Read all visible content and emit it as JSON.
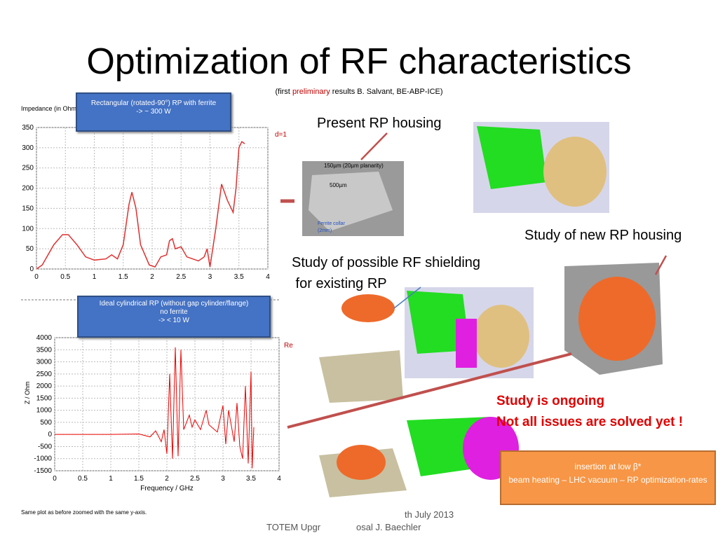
{
  "title": "Optimization of RF characteristics",
  "subtitle": {
    "prefix": "(first ",
    "highlight": "preliminary",
    "suffix": " results B. Salvant,  BE-ABP-ICE)"
  },
  "plot1": {
    "callout": [
      "Rectangular (rotated-90°)  RP with ferrite",
      "-> ~ 300 W"
    ],
    "ylabel": "Impedance (in Ohm",
    "legend": "d=1",
    "xlim": [
      0,
      4
    ],
    "ylim": [
      0,
      350
    ],
    "xticks": [
      0,
      0.5,
      1,
      1.5,
      2,
      2.5,
      3,
      3.5,
      4
    ],
    "yticks": [
      0,
      50,
      100,
      150,
      200,
      250,
      300,
      350
    ],
    "x": [
      0,
      0.1,
      0.3,
      0.45,
      0.55,
      0.7,
      0.85,
      1.0,
      1.2,
      1.3,
      1.4,
      1.5,
      1.6,
      1.65,
      1.72,
      1.8,
      1.95,
      2.05,
      2.15,
      2.25,
      2.3,
      2.35,
      2.4,
      2.5,
      2.6,
      2.8,
      2.9,
      2.95,
      3.0,
      3.1,
      3.2,
      3.3,
      3.4,
      3.45,
      3.5,
      3.55,
      3.6
    ],
    "y": [
      0,
      10,
      60,
      85,
      85,
      60,
      30,
      22,
      25,
      35,
      25,
      60,
      160,
      190,
      150,
      60,
      10,
      5,
      30,
      35,
      70,
      75,
      50,
      55,
      30,
      20,
      30,
      50,
      5,
      100,
      210,
      170,
      140,
      200,
      300,
      315,
      310
    ]
  },
  "plot2": {
    "callout": [
      "Ideal cylindrical RP  (without gap cylinder/flange)",
      "no ferrite",
      "->  <  10 W"
    ],
    "ylabel": "Z / Ohm",
    "xlabel": "Frequency / GHz",
    "legend": "Re",
    "note": "Same plot as before zoomed with the same y-axis.",
    "xlim": [
      0,
      4
    ],
    "ylim": [
      -1500,
      4000
    ],
    "xticks": [
      0,
      0.5,
      1,
      1.5,
      2,
      2.5,
      3,
      3.5,
      4
    ],
    "yticks": [
      -1500,
      -1000,
      -500,
      0,
      500,
      1000,
      1500,
      2000,
      2500,
      3000,
      3500,
      4000
    ],
    "x": [
      0,
      1.0,
      1.5,
      1.7,
      1.8,
      1.9,
      1.95,
      2.0,
      2.05,
      2.1,
      2.15,
      2.2,
      2.25,
      2.3,
      2.4,
      2.45,
      2.5,
      2.6,
      2.7,
      2.75,
      2.8,
      2.9,
      3.0,
      3.05,
      3.1,
      3.2,
      3.25,
      3.3,
      3.35,
      3.4,
      3.45,
      3.5,
      3.52,
      3.55
    ],
    "y": [
      0,
      0,
      20,
      -100,
      150,
      -300,
      200,
      -800,
      2500,
      -1000,
      3600,
      -900,
      3500,
      200,
      800,
      300,
      600,
      200,
      1000,
      400,
      300,
      100,
      1200,
      -400,
      1000,
      -300,
      1300,
      -500,
      -1000,
      2000,
      -1200,
      2600,
      -1400,
      300
    ]
  },
  "labels": {
    "present": "Present RP housing",
    "new": "Study of new RP housing",
    "shielding": [
      "Study of possible RF shielding",
      " for existing RP"
    ],
    "photo": [
      "150µm (20µm planarity)",
      "500µm",
      "Ferrite collar",
      "(2mm)"
    ],
    "ongoing": [
      "Study is ongoing",
      "Not all issues are solved yet !"
    ]
  },
  "infobox": [
    "insertion at low β*",
    "beam heating – LHC vacuum – RP optimization-rates"
  ],
  "footer": [
    "th July 2013",
    "TOTEM  Upgr",
    "osal  J. Baechler"
  ]
}
